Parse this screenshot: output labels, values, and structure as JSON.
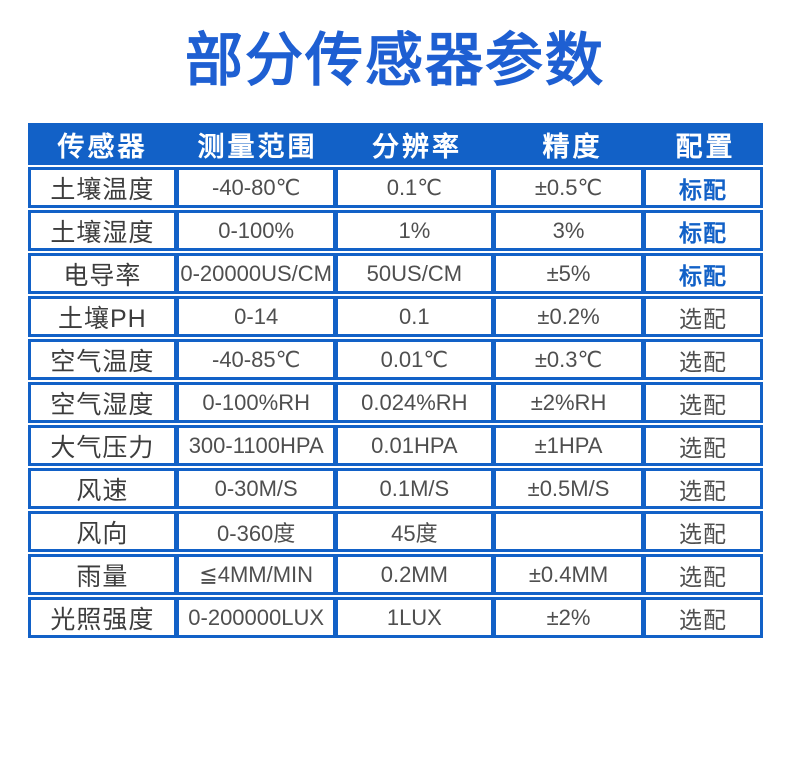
{
  "title": "部分传感器参数",
  "colors": {
    "primary_blue": "#1261c7",
    "title_blue": "#1e5fd2",
    "header_text": "#ffffff",
    "body_text": "#4f4f4f",
    "standard_config_text": "#1261c7"
  },
  "chart_data": {
    "type": "table",
    "title": "部分传感器参数",
    "columns": [
      "传感器",
      "测量范围",
      "分辨率",
      "精度",
      "配置"
    ],
    "rows": [
      [
        "土壤温度",
        "-40-80℃",
        "0.1℃",
        "±0.5℃",
        "标配"
      ],
      [
        "土壤湿度",
        "0-100%",
        "1%",
        "3%",
        "标配"
      ],
      [
        "电导率",
        "0-20000US/CM",
        "50US/CM",
        "±5%",
        "标配"
      ],
      [
        "土壤PH",
        "0-14",
        "0.1",
        "±0.2%",
        "选配"
      ],
      [
        "空气温度",
        "-40-85℃",
        "0.01℃",
        "±0.3℃",
        "选配"
      ],
      [
        "空气湿度",
        "0-100%RH",
        "0.024%RH",
        "±2%RH",
        "选配"
      ],
      [
        "大气压力",
        "300-1100HPA",
        "0.01HPA",
        "±1HPA",
        "选配"
      ],
      [
        "风速",
        "0-30M/S",
        "0.1M/S",
        "±0.5M/S",
        "选配"
      ],
      [
        "风向",
        "0-360度",
        "45度",
        "",
        "选配"
      ],
      [
        "雨量",
        "≦4MM/MIN",
        "0.2MM",
        "±0.4MM",
        "选配"
      ],
      [
        "光照强度",
        "0-200000LUX",
        "1LUX",
        "±2%",
        "选配"
      ]
    ],
    "config_legend": {
      "standard": "标配",
      "optional": "选配"
    }
  }
}
